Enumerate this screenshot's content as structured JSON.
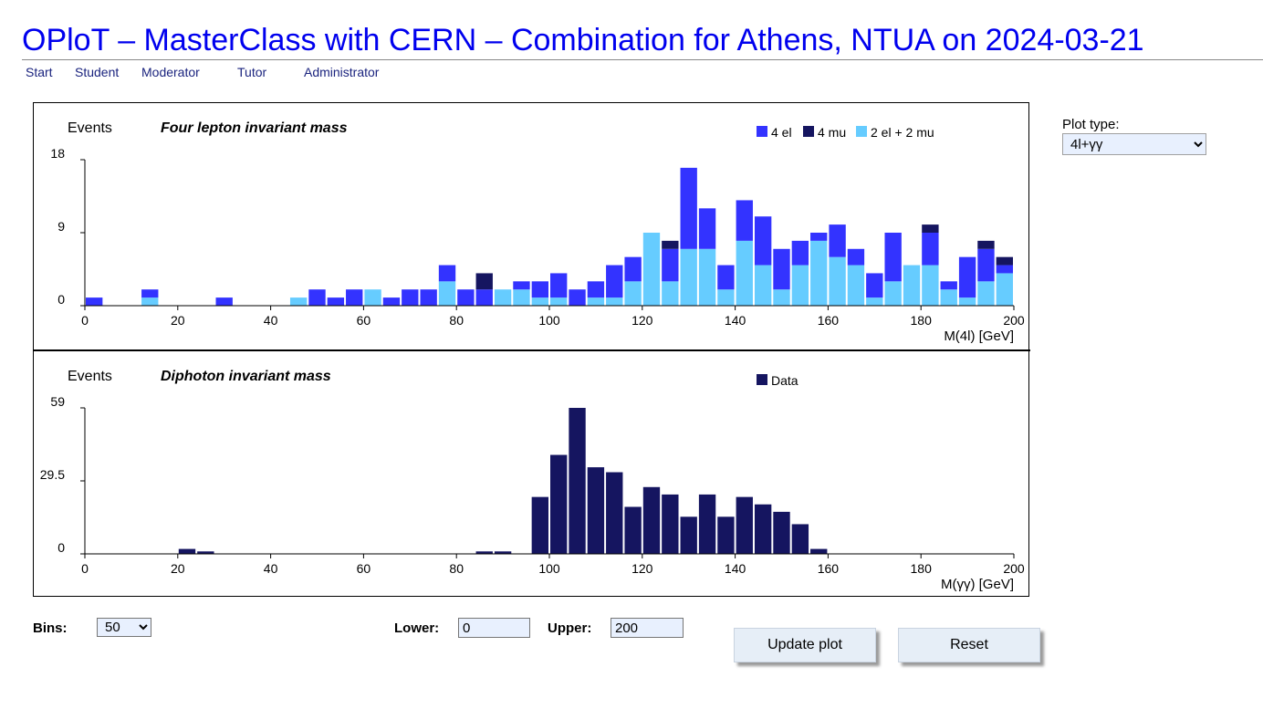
{
  "title": "OPloT – MasterClass with CERN – Combination for Athens, NTUA on 2024-03-21",
  "nav": [
    "Start",
    "Student",
    "Moderator",
    "Tutor",
    "Administrator"
  ],
  "controls": {
    "plot_type_label": "Plot type:",
    "plot_type_value": "4l+γγ",
    "bins_label": "Bins:",
    "bins_value": "50",
    "lower_label": "Lower:",
    "lower_value": "0",
    "upper_label": "Upper:",
    "upper_value": "200",
    "update_label": "Update plot",
    "reset_label": "Reset"
  },
  "colors": {
    "4el": "#3333ff",
    "4mu": "#151560",
    "2el2mu": "#66ccff",
    "data": "#151560",
    "title": "#0000ee"
  },
  "chart_data": [
    {
      "type": "bar",
      "stacked": true,
      "title": "Four lepton invariant mass",
      "ylabel": "Events",
      "xlabel": "M(4l) [GeV]",
      "xlim": [
        0,
        200
      ],
      "ylim": [
        0,
        18
      ],
      "yticks": [
        0,
        9,
        18
      ],
      "xticks": [
        0,
        20,
        40,
        60,
        80,
        100,
        120,
        140,
        160,
        180,
        200
      ],
      "bin_width": 4,
      "x": [
        0,
        4,
        8,
        12,
        16,
        20,
        24,
        28,
        32,
        36,
        40,
        44,
        48,
        52,
        56,
        60,
        64,
        68,
        72,
        76,
        80,
        84,
        88,
        92,
        96,
        100,
        104,
        108,
        112,
        116,
        120,
        124,
        128,
        132,
        136,
        140,
        144,
        148,
        152,
        156,
        160,
        164,
        168,
        172,
        176,
        180,
        184,
        188,
        192,
        196
      ],
      "series": [
        {
          "name": "2 el + 2 mu",
          "values": [
            0,
            0,
            0,
            1,
            0,
            0,
            0,
            0,
            0,
            0,
            0,
            1,
            0,
            0,
            0,
            2,
            0,
            0,
            0,
            3,
            0,
            0,
            2,
            2,
            1,
            1,
            0,
            1,
            1,
            3,
            9,
            3,
            7,
            7,
            2,
            8,
            5,
            2,
            5,
            8,
            6,
            5,
            1,
            3,
            5,
            5,
            2,
            1,
            3,
            4
          ]
        },
        {
          "name": "4 el",
          "values": [
            1,
            0,
            0,
            1,
            0,
            0,
            0,
            1,
            0,
            0,
            0,
            0,
            2,
            1,
            2,
            0,
            1,
            2,
            2,
            2,
            2,
            2,
            0,
            1,
            2,
            3,
            2,
            2,
            4,
            3,
            0,
            4,
            10,
            5,
            3,
            5,
            6,
            5,
            3,
            1,
            4,
            2,
            3,
            6,
            0,
            4,
            1,
            5,
            4,
            1
          ]
        },
        {
          "name": "4 mu",
          "values": [
            0,
            0,
            0,
            0,
            0,
            0,
            0,
            0,
            0,
            0,
            0,
            0,
            0,
            0,
            0,
            0,
            0,
            0,
            0,
            0,
            0,
            2,
            0,
            0,
            0,
            0,
            0,
            0,
            0,
            0,
            0,
            1,
            0,
            0,
            0,
            0,
            0,
            0,
            0,
            0,
            0,
            0,
            0,
            0,
            0,
            1,
            0,
            0,
            1,
            1
          ]
        }
      ]
    },
    {
      "type": "bar",
      "title": "Diphoton invariant mass",
      "ylabel": "Events",
      "xlabel": "M(γγ) [GeV]",
      "xlim": [
        0,
        200
      ],
      "ylim": [
        0,
        59
      ],
      "yticks": [
        0,
        29.5,
        59
      ],
      "xticks": [
        0,
        20,
        40,
        60,
        80,
        100,
        120,
        140,
        160,
        180,
        200
      ],
      "bin_width": 4,
      "x": [
        0,
        4,
        8,
        12,
        16,
        20,
        24,
        28,
        32,
        36,
        40,
        44,
        48,
        52,
        56,
        60,
        64,
        68,
        72,
        76,
        80,
        84,
        88,
        92,
        96,
        100,
        104,
        108,
        112,
        116,
        120,
        124,
        128,
        132,
        136,
        140,
        144,
        148,
        152,
        156,
        160,
        164,
        168,
        172,
        176,
        180,
        184,
        188,
        192,
        196
      ],
      "series": [
        {
          "name": "Data",
          "values": [
            0,
            0,
            0,
            0,
            0,
            2,
            1,
            0,
            0,
            0,
            0,
            0,
            0,
            0,
            0,
            0,
            0,
            0,
            0,
            0,
            0,
            1,
            1,
            0,
            23,
            40,
            59,
            35,
            33,
            19,
            27,
            24,
            15,
            24,
            15,
            23,
            20,
            17,
            12,
            2,
            0,
            0,
            0,
            0,
            0,
            0,
            0,
            0,
            0,
            0
          ]
        }
      ]
    }
  ]
}
